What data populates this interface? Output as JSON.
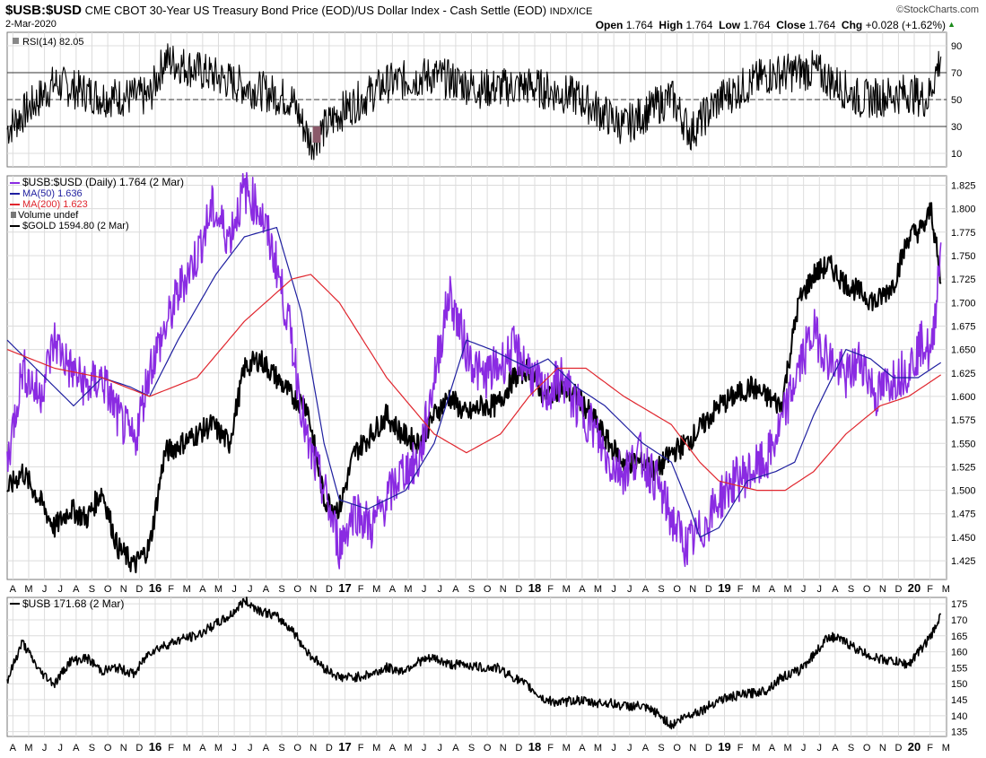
{
  "header": {
    "symbol": "$USB:$USD",
    "description": "CME CBOT 30-Year US Treasury Bond Price (EOD)/US Dollar Index - Cash Settle (EOD)",
    "exchange": "INDX/ICE",
    "date": "2-Mar-2020",
    "brand": "©StockCharts.com",
    "open_label": "Open",
    "open": "1.764",
    "high_label": "High",
    "high": "1.764",
    "low_label": "Low",
    "low": "1.764",
    "close_label": "Close",
    "close": "1.764",
    "chg_label": "Chg",
    "chg": "+0.028 (+1.62%)",
    "chg_arrow": "▲"
  },
  "colors": {
    "ratio": "#8a2be2",
    "ma50": "#1f1fa0",
    "ma200": "#e0262e",
    "gold": "#000000",
    "usb": "#000000",
    "rsi": "#000000",
    "grid": "#dcdcdc",
    "rsi_oversold_fill": "#8b5a6a"
  },
  "chart_data": [
    {
      "type": "line",
      "panel": "rsi",
      "title": "RSI(14) 82.05",
      "legend": [
        "RSI(14) 82.05"
      ],
      "ylim": [
        0,
        100
      ],
      "yticks": [
        10,
        30,
        50,
        70,
        90
      ],
      "reference_lines": [
        30,
        50,
        70
      ],
      "series": [
        {
          "name": "RSI(14)",
          "x": [
            2015.25,
            2015.5,
            2015.75,
            2016.0,
            2016.08,
            2016.5,
            2016.75,
            2016.85,
            2017.0,
            2017.25,
            2017.5,
            2017.75,
            2018.0,
            2018.25,
            2018.5,
            2018.75,
            2018.85,
            2019.0,
            2019.25,
            2019.5,
            2019.75,
            2020.0,
            2020.1,
            2020.17
          ],
          "values": [
            28,
            62,
            52,
            52,
            80,
            60,
            50,
            18,
            40,
            62,
            68,
            58,
            60,
            52,
            30,
            52,
            25,
            50,
            68,
            72,
            50,
            55,
            50,
            82
          ]
        }
      ]
    },
    {
      "type": "line",
      "panel": "main",
      "legend": [
        "$USB:$USD (Daily) 1.764 (2 Mar)",
        "MA(50) 1.636",
        "MA(200) 1.623",
        "Volume undef",
        "$GOLD 1594.80 (2 Mar)"
      ],
      "ylim": [
        1.405,
        1.835
      ],
      "yticks": [
        1.425,
        1.45,
        1.475,
        1.5,
        1.525,
        1.55,
        1.575,
        1.6,
        1.625,
        1.65,
        1.675,
        1.7,
        1.725,
        1.75,
        1.775,
        1.8,
        1.825
      ],
      "xlim": [
        2015.25,
        2020.2
      ],
      "series": [
        {
          "name": "$USB:$USD (Daily)",
          "x": [
            2015.25,
            2015.33,
            2015.42,
            2015.5,
            2015.58,
            2015.67,
            2015.75,
            2015.83,
            2015.92,
            2016.0,
            2016.08,
            2016.17,
            2016.25,
            2016.33,
            2016.42,
            2016.5,
            2016.58,
            2016.67,
            2016.75,
            2016.83,
            2016.92,
            2017.0,
            2017.08,
            2017.17,
            2017.25,
            2017.33,
            2017.42,
            2017.5,
            2017.58,
            2017.67,
            2017.75,
            2017.83,
            2017.92,
            2018.0,
            2018.08,
            2018.17,
            2018.25,
            2018.33,
            2018.42,
            2018.5,
            2018.58,
            2018.67,
            2018.75,
            2018.83,
            2018.92,
            2019.0,
            2019.08,
            2019.17,
            2019.25,
            2019.33,
            2019.42,
            2019.5,
            2019.58,
            2019.67,
            2019.75,
            2019.83,
            2019.92,
            2020.0,
            2020.08,
            2020.12,
            2020.17
          ],
          "values": [
            1.53,
            1.63,
            1.6,
            1.66,
            1.63,
            1.61,
            1.62,
            1.58,
            1.55,
            1.63,
            1.67,
            1.72,
            1.75,
            1.8,
            1.77,
            1.82,
            1.8,
            1.74,
            1.66,
            1.55,
            1.5,
            1.44,
            1.48,
            1.46,
            1.49,
            1.52,
            1.53,
            1.62,
            1.71,
            1.65,
            1.62,
            1.63,
            1.65,
            1.63,
            1.6,
            1.62,
            1.59,
            1.57,
            1.53,
            1.52,
            1.54,
            1.51,
            1.47,
            1.44,
            1.46,
            1.49,
            1.51,
            1.52,
            1.53,
            1.57,
            1.63,
            1.67,
            1.64,
            1.62,
            1.64,
            1.6,
            1.62,
            1.63,
            1.66,
            1.64,
            1.764
          ]
        },
        {
          "name": "MA(50)",
          "x": [
            2015.25,
            2015.4,
            2015.6,
            2015.75,
            2015.9,
            2016.0,
            2016.15,
            2016.35,
            2016.5,
            2016.67,
            2016.8,
            2016.92,
            2017.0,
            2017.15,
            2017.35,
            2017.5,
            2017.67,
            2017.8,
            2018.0,
            2018.1,
            2018.25,
            2018.4,
            2018.6,
            2018.75,
            2018.85,
            2018.9,
            2019.0,
            2019.15,
            2019.3,
            2019.4,
            2019.5,
            2019.67,
            2019.8,
            2019.92,
            2020.05,
            2020.17
          ],
          "values": [
            1.66,
            1.63,
            1.59,
            1.62,
            1.61,
            1.6,
            1.66,
            1.73,
            1.77,
            1.78,
            1.69,
            1.55,
            1.49,
            1.48,
            1.5,
            1.55,
            1.66,
            1.65,
            1.63,
            1.64,
            1.61,
            1.59,
            1.55,
            1.53,
            1.48,
            1.45,
            1.46,
            1.51,
            1.52,
            1.53,
            1.58,
            1.65,
            1.64,
            1.62,
            1.62,
            1.636
          ]
        },
        {
          "name": "MA(200)",
          "x": [
            2015.25,
            2015.5,
            2015.75,
            2016.0,
            2016.25,
            2016.5,
            2016.75,
            2016.85,
            2017.0,
            2017.25,
            2017.5,
            2017.67,
            2017.85,
            2018.0,
            2018.15,
            2018.3,
            2018.5,
            2018.75,
            2018.9,
            2019.0,
            2019.2,
            2019.35,
            2019.5,
            2019.67,
            2019.85,
            2020.0,
            2020.17
          ],
          "values": [
            1.65,
            1.63,
            1.62,
            1.6,
            1.62,
            1.68,
            1.725,
            1.73,
            1.7,
            1.62,
            1.56,
            1.54,
            1.56,
            1.6,
            1.63,
            1.63,
            1.6,
            1.57,
            1.53,
            1.51,
            1.5,
            1.5,
            1.52,
            1.56,
            1.59,
            1.6,
            1.623
          ]
        },
        {
          "name": "$GOLD",
          "x": [
            2015.25,
            2015.33,
            2015.42,
            2015.5,
            2015.58,
            2015.67,
            2015.75,
            2015.83,
            2015.92,
            2016.0,
            2016.08,
            2016.17,
            2016.25,
            2016.33,
            2016.42,
            2016.5,
            2016.58,
            2016.67,
            2016.75,
            2016.83,
            2016.92,
            2017.0,
            2017.08,
            2017.17,
            2017.25,
            2017.33,
            2017.42,
            2017.5,
            2017.58,
            2017.67,
            2017.75,
            2017.83,
            2017.92,
            2018.0,
            2018.08,
            2018.17,
            2018.25,
            2018.33,
            2018.42,
            2018.5,
            2018.58,
            2018.67,
            2018.75,
            2018.83,
            2018.92,
            2019.0,
            2019.08,
            2019.17,
            2019.25,
            2019.33,
            2019.42,
            2019.5,
            2019.58,
            2019.67,
            2019.75,
            2019.83,
            2019.92,
            2020.0,
            2020.08,
            2020.12,
            2020.17
          ],
          "values": [
            1.5,
            1.52,
            1.49,
            1.46,
            1.48,
            1.47,
            1.5,
            1.44,
            1.42,
            1.44,
            1.54,
            1.55,
            1.56,
            1.57,
            1.55,
            1.63,
            1.64,
            1.62,
            1.6,
            1.59,
            1.49,
            1.48,
            1.54,
            1.56,
            1.58,
            1.56,
            1.55,
            1.58,
            1.6,
            1.58,
            1.59,
            1.59,
            1.62,
            1.63,
            1.6,
            1.61,
            1.6,
            1.58,
            1.55,
            1.53,
            1.53,
            1.52,
            1.54,
            1.55,
            1.57,
            1.59,
            1.6,
            1.61,
            1.6,
            1.59,
            1.7,
            1.73,
            1.74,
            1.72,
            1.71,
            1.7,
            1.72,
            1.77,
            1.78,
            1.8,
            1.72
          ]
        }
      ]
    },
    {
      "type": "line",
      "panel": "usb",
      "legend": [
        "$USB 171.68 (2 Mar)"
      ],
      "ylim": [
        133.5,
        177
      ],
      "yticks": [
        135,
        140,
        145,
        150,
        155,
        160,
        165,
        170,
        175
      ],
      "series": [
        {
          "name": "$USB",
          "x": [
            2015.25,
            2015.33,
            2015.42,
            2015.5,
            2015.58,
            2015.67,
            2015.75,
            2015.83,
            2015.92,
            2016.0,
            2016.08,
            2016.17,
            2016.25,
            2016.33,
            2016.42,
            2016.5,
            2016.58,
            2016.67,
            2016.75,
            2016.83,
            2016.92,
            2017.0,
            2017.08,
            2017.17,
            2017.25,
            2017.33,
            2017.42,
            2017.5,
            2017.58,
            2017.67,
            2017.75,
            2017.83,
            2017.92,
            2018.0,
            2018.08,
            2018.17,
            2018.25,
            2018.33,
            2018.42,
            2018.5,
            2018.58,
            2018.67,
            2018.75,
            2018.83,
            2018.92,
            2019.0,
            2019.08,
            2019.17,
            2019.25,
            2019.33,
            2019.42,
            2019.5,
            2019.58,
            2019.67,
            2019.75,
            2019.83,
            2019.92,
            2020.0,
            2020.08,
            2020.12,
            2020.17
          ],
          "values": [
            151,
            163,
            154,
            150,
            157,
            158,
            154,
            155,
            153,
            160,
            162,
            164,
            165,
            168,
            171,
            176,
            173,
            171,
            167,
            160,
            155,
            152,
            152,
            153,
            155,
            154,
            157,
            158,
            156,
            156,
            155,
            155,
            152,
            149,
            145,
            144,
            145,
            144,
            144,
            143,
            143,
            141,
            137,
            140,
            142,
            145,
            146,
            147,
            148,
            152,
            154,
            159,
            165,
            163,
            160,
            158,
            157,
            156,
            162,
            165,
            171.68
          ]
        }
      ]
    }
  ],
  "x_axis": {
    "labels": [
      {
        "t": "A",
        "bold": false
      },
      {
        "t": "M",
        "bold": false
      },
      {
        "t": "J",
        "bold": false
      },
      {
        "t": "J",
        "bold": false
      },
      {
        "t": "A",
        "bold": false
      },
      {
        "t": "S",
        "bold": false
      },
      {
        "t": "O",
        "bold": false
      },
      {
        "t": "N",
        "bold": false
      },
      {
        "t": "D",
        "bold": false
      },
      {
        "t": "16",
        "bold": true
      },
      {
        "t": "F",
        "bold": false
      },
      {
        "t": "M",
        "bold": false
      },
      {
        "t": "A",
        "bold": false
      },
      {
        "t": "M",
        "bold": false
      },
      {
        "t": "J",
        "bold": false
      },
      {
        "t": "J",
        "bold": false
      },
      {
        "t": "A",
        "bold": false
      },
      {
        "t": "S",
        "bold": false
      },
      {
        "t": "O",
        "bold": false
      },
      {
        "t": "N",
        "bold": false
      },
      {
        "t": "D",
        "bold": false
      },
      {
        "t": "17",
        "bold": true
      },
      {
        "t": "F",
        "bold": false
      },
      {
        "t": "M",
        "bold": false
      },
      {
        "t": "A",
        "bold": false
      },
      {
        "t": "M",
        "bold": false
      },
      {
        "t": "J",
        "bold": false
      },
      {
        "t": "J",
        "bold": false
      },
      {
        "t": "A",
        "bold": false
      },
      {
        "t": "S",
        "bold": false
      },
      {
        "t": "O",
        "bold": false
      },
      {
        "t": "N",
        "bold": false
      },
      {
        "t": "D",
        "bold": false
      },
      {
        "t": "18",
        "bold": true
      },
      {
        "t": "F",
        "bold": false
      },
      {
        "t": "M",
        "bold": false
      },
      {
        "t": "A",
        "bold": false
      },
      {
        "t": "M",
        "bold": false
      },
      {
        "t": "J",
        "bold": false
      },
      {
        "t": "J",
        "bold": false
      },
      {
        "t": "A",
        "bold": false
      },
      {
        "t": "S",
        "bold": false
      },
      {
        "t": "O",
        "bold": false
      },
      {
        "t": "N",
        "bold": false
      },
      {
        "t": "D",
        "bold": false
      },
      {
        "t": "19",
        "bold": true
      },
      {
        "t": "F",
        "bold": false
      },
      {
        "t": "M",
        "bold": false
      },
      {
        "t": "A",
        "bold": false
      },
      {
        "t": "M",
        "bold": false
      },
      {
        "t": "J",
        "bold": false
      },
      {
        "t": "J",
        "bold": false
      },
      {
        "t": "A",
        "bold": false
      },
      {
        "t": "S",
        "bold": false
      },
      {
        "t": "O",
        "bold": false
      },
      {
        "t": "N",
        "bold": false
      },
      {
        "t": "D",
        "bold": false
      },
      {
        "t": "20",
        "bold": true
      },
      {
        "t": "F",
        "bold": false
      },
      {
        "t": "M",
        "bold": false
      }
    ]
  }
}
